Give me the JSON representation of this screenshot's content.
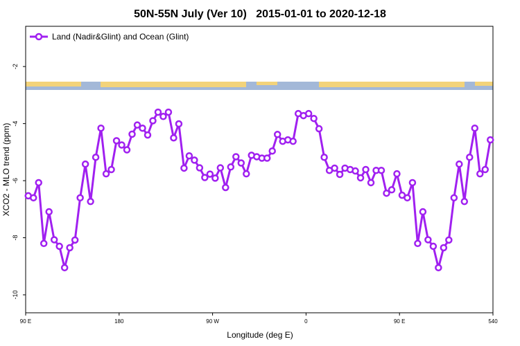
{
  "chart_data": {
    "type": "line",
    "title": "50N-55N July (Ver 10)   2015-01-01 to 2020-12-18",
    "x_label": "Longitude (deg E)",
    "y_label": "XCO2 - MLO trend (ppm)",
    "x": [
      92.5,
      97.5,
      102.5,
      107.5,
      112.5,
      117.5,
      122.5,
      127.5,
      132.5,
      137.5,
      142.5,
      147.5,
      152.5,
      157.5,
      162.5,
      167.5,
      172.5,
      177.5,
      182.5,
      187.5,
      192.5,
      197.5,
      202.5,
      207.5,
      212.5,
      217.5,
      222.5,
      227.5,
      232.5,
      237.5,
      242.5,
      247.5,
      252.5,
      257.5,
      262.5,
      267.5,
      272.5,
      277.5,
      282.5,
      287.5,
      292.5,
      297.5,
      302.5,
      307.5,
      312.5,
      317.5,
      322.5,
      327.5,
      332.5,
      337.5,
      342.5,
      347.5,
      352.5,
      357.5,
      362.5,
      367.5,
      372.5,
      377.5,
      382.5,
      387.5,
      392.5,
      397.5,
      402.5,
      407.5,
      412.5,
      417.5,
      422.5,
      427.5,
      432.5,
      437.5,
      442.5,
      447.5,
      452.5,
      457.5,
      462.5,
      467.5,
      472.5,
      477.5,
      482.5,
      487.5,
      492.5,
      497.5,
      502.5,
      507.5,
      512.5,
      517.5,
      522.5,
      527.5,
      532.5,
      537.5
    ],
    "series": [
      {
        "name": "Land (Nadir&Glint) and Ocean (Glint)",
        "color": "#a020f0",
        "values": [
          -6.53,
          -6.6,
          -6.07,
          -8.2,
          -7.09,
          -8.07,
          -8.3,
          -9.05,
          -8.35,
          -8.08,
          -6.6,
          -5.42,
          -6.73,
          -5.18,
          -4.16,
          -5.76,
          -5.61,
          -4.6,
          -4.75,
          -4.92,
          -4.37,
          -4.05,
          -4.16,
          -4.4,
          -3.9,
          -3.6,
          -3.75,
          -3.6,
          -4.5,
          -4.01,
          -5.56,
          -5.13,
          -5.28,
          -5.55,
          -5.89,
          -5.77,
          -5.91,
          -5.55,
          -6.24,
          -5.52,
          -5.16,
          -5.38,
          -5.76,
          -5.11,
          -5.16,
          -5.21,
          -5.21,
          -4.96,
          -4.38,
          -4.62,
          -4.57,
          -4.62,
          -3.65,
          -3.72,
          -3.65,
          -3.82,
          -4.18,
          -5.18,
          -5.64,
          -5.56,
          -5.78,
          -5.56,
          -5.61,
          -5.66,
          -5.9,
          -5.61,
          -6.07,
          -5.64,
          -5.64,
          -6.44,
          -6.32,
          -5.76,
          -6.51,
          -6.6,
          -6.07,
          -8.2,
          -7.09,
          -8.07,
          -8.3,
          -9.05,
          -8.35,
          -8.08,
          -6.6,
          -5.42,
          -6.73,
          -5.18,
          -4.16,
          -5.76,
          -5.61,
          -4.57
        ]
      }
    ],
    "xlim": [
      90,
      540
    ],
    "xticks": [
      {
        "value": 90,
        "label": "90 E"
      },
      180,
      {
        "value": 270,
        "label": "90 W"
      },
      {
        "value": 360,
        "label": "0"
      },
      {
        "value": 450,
        "label": "90 E"
      },
      540
    ],
    "ylim": [
      -10.63,
      -0.59
    ],
    "yticks": [
      -2,
      -4,
      -6,
      -8,
      -10
    ],
    "legend": "top-left"
  }
}
